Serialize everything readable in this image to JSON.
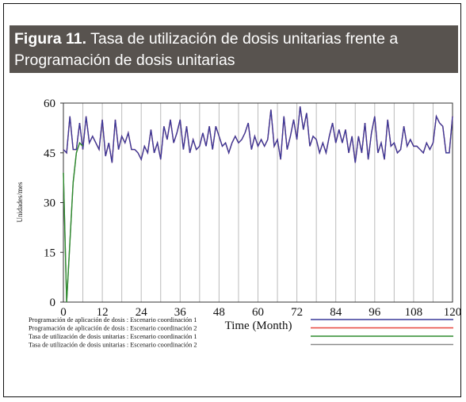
{
  "caption_label": "Figura 11.",
  "chart_data": {
    "type": "line",
    "title": "Tasa de utilización de dosis unitarias frente a Programación de dosis unitarias",
    "x_label": "Time (Month)",
    "y_label": "Unidades/mes",
    "xlim": [
      0,
      120
    ],
    "xticks": [
      0,
      12,
      24,
      36,
      48,
      60,
      72,
      84,
      96,
      108,
      120
    ],
    "ylim": [
      0,
      60
    ],
    "yticks": [
      0,
      15,
      30,
      45,
      60
    ],
    "grid": true,
    "x": [
      0,
      1,
      2,
      3,
      4,
      5,
      6,
      7,
      8,
      9,
      10,
      11,
      12,
      13,
      14,
      15,
      16,
      17,
      18,
      19,
      20,
      21,
      22,
      23,
      24,
      25,
      26,
      27,
      28,
      29,
      30,
      31,
      32,
      33,
      34,
      35,
      36,
      37,
      38,
      39,
      40,
      41,
      42,
      43,
      44,
      45,
      46,
      47,
      48,
      49,
      50,
      51,
      52,
      53,
      54,
      55,
      56,
      57,
      58,
      59,
      60,
      61,
      62,
      63,
      64,
      65,
      66,
      67,
      68,
      69,
      70,
      71,
      72,
      73,
      74,
      75,
      76,
      77,
      78,
      79,
      80,
      81,
      82,
      83,
      84,
      85,
      86,
      87,
      88,
      89,
      90,
      91,
      92,
      93,
      94,
      95,
      96,
      97,
      98,
      99,
      100,
      101,
      102,
      103,
      104,
      105,
      106,
      107,
      108,
      109,
      110,
      111,
      112,
      113,
      114,
      115,
      116,
      117,
      118,
      119,
      120
    ],
    "series": [
      {
        "name": "Programación de aplicación de dosis : Escenario coordinación 2",
        "color": "#e8453c",
        "values": [
          46,
          45,
          56,
          46,
          46,
          54,
          46,
          56,
          48,
          50,
          48,
          46,
          55,
          44,
          48,
          42,
          55,
          46,
          50,
          48,
          51,
          46,
          46,
          45,
          43,
          47,
          45,
          52,
          45,
          48,
          43,
          53,
          49,
          55,
          48,
          51,
          55,
          46,
          53,
          45,
          49,
          46,
          47,
          51,
          47,
          53,
          46,
          53,
          50,
          47,
          48,
          45,
          48,
          50,
          48,
          49,
          51,
          54,
          46,
          50,
          47,
          49,
          47,
          49,
          58,
          47,
          49,
          43,
          56,
          46,
          50,
          55,
          49,
          59,
          52,
          57,
          47,
          50,
          49,
          45,
          48,
          45,
          50,
          54,
          48,
          52,
          48,
          52,
          45,
          50,
          42,
          50,
          45,
          54,
          43,
          51,
          56,
          45,
          48,
          43,
          55,
          47,
          48,
          45,
          46,
          53,
          47,
          49,
          47,
          47,
          46,
          45,
          48,
          46,
          48,
          56,
          54,
          53,
          45,
          45,
          56
        ]
      },
      {
        "name": "Programación de aplicación de dosis : Escenario coordinación 1",
        "color": "#3a3a9a",
        "values": [
          46,
          45,
          56,
          46,
          46,
          54,
          46,
          56,
          48,
          50,
          48,
          46,
          55,
          44,
          48,
          42,
          55,
          46,
          50,
          48,
          51,
          46,
          46,
          45,
          43,
          47,
          45,
          52,
          45,
          48,
          43,
          53,
          49,
          55,
          48,
          51,
          55,
          46,
          53,
          45,
          49,
          46,
          47,
          51,
          47,
          53,
          46,
          53,
          50,
          47,
          48,
          45,
          48,
          50,
          48,
          49,
          51,
          54,
          46,
          50,
          47,
          49,
          47,
          49,
          58,
          47,
          49,
          43,
          56,
          46,
          50,
          55,
          49,
          59,
          52,
          57,
          47,
          50,
          49,
          45,
          48,
          45,
          50,
          54,
          48,
          52,
          48,
          52,
          45,
          50,
          42,
          50,
          45,
          54,
          43,
          51,
          56,
          45,
          48,
          43,
          55,
          47,
          48,
          45,
          46,
          53,
          47,
          49,
          47,
          47,
          46,
          45,
          48,
          46,
          48,
          56,
          54,
          53,
          45,
          45,
          56
        ]
      },
      {
        "name": "Tasa de utilización de dosis unitarias : Escenario coordinación 2",
        "color": "#8a8a8a",
        "x": [
          0,
          1,
          2,
          3,
          4,
          5,
          6
        ],
        "values": [
          39,
          0,
          18,
          36,
          45,
          48,
          47
        ]
      },
      {
        "name": "Tasa de utilización de dosis unitarias : Escenario coordinación 1",
        "color": "#2e8b2e",
        "x": [
          0,
          1,
          2,
          3,
          4,
          5,
          6
        ],
        "values": [
          39,
          0,
          18,
          36,
          45,
          48,
          47
        ]
      }
    ]
  }
}
